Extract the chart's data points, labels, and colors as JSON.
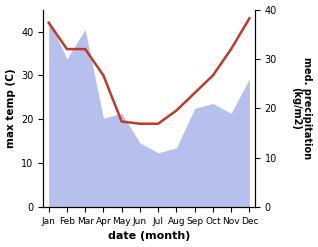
{
  "months": [
    "Jan",
    "Feb",
    "Mar",
    "Apr",
    "May",
    "Jun",
    "Jul",
    "Aug",
    "Sep",
    "Oct",
    "Nov",
    "Dec"
  ],
  "temperature": [
    42,
    36,
    36,
    30,
    19.5,
    19,
    19,
    22,
    26,
    30,
    36,
    43
  ],
  "precipitation": [
    38,
    30,
    36,
    18,
    19,
    13,
    11,
    12,
    20,
    21,
    19,
    26
  ],
  "temp_color": "#c0392b",
  "precip_color": "#b0b8ea",
  "ylabel_left": "max temp (C)",
  "ylabel_right": "med. precipitation\n(kg/m2)",
  "xlabel": "date (month)",
  "ylim_left": [
    0,
    45
  ],
  "ylim_right": [
    0,
    40
  ],
  "yticks_left": [
    0,
    10,
    20,
    30,
    40
  ],
  "yticks_right": [
    0,
    10,
    20,
    30,
    40
  ],
  "bg_color": "#ffffff"
}
